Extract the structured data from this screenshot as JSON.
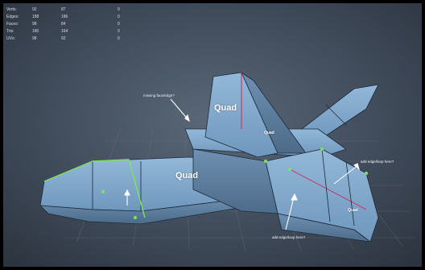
{
  "hud": {
    "rows": [
      {
        "label": "Verts:",
        "v1": "92",
        "v2": "87",
        "v3": "0"
      },
      {
        "label": "Edges:",
        "v1": "188",
        "v2": "186",
        "v3": "0"
      },
      {
        "label": "Faces:",
        "v1": "98",
        "v2": "84",
        "v3": "0"
      },
      {
        "label": "Tris:",
        "v1": "180",
        "v2": "164",
        "v3": "0"
      },
      {
        "label": "UVs:",
        "v1": "98",
        "v2": "92",
        "v3": "0"
      }
    ]
  },
  "faces": {
    "tail_label": "Quad",
    "wing_label": "Quad",
    "fin_label": "Quad",
    "nose_label": "Quad"
  },
  "annotations": {
    "top": "missing face/edge?",
    "right": "add edge/loop here?",
    "bottom": "add edge/loop here?"
  },
  "colors": {
    "model_fill": "#7aa3c8",
    "model_fill_dark": "#5f84a6",
    "edge": "#1b2a3a",
    "selected_edge": "#7fe35a",
    "pole_edge": "#d0285a",
    "grid": "#6b7480"
  }
}
